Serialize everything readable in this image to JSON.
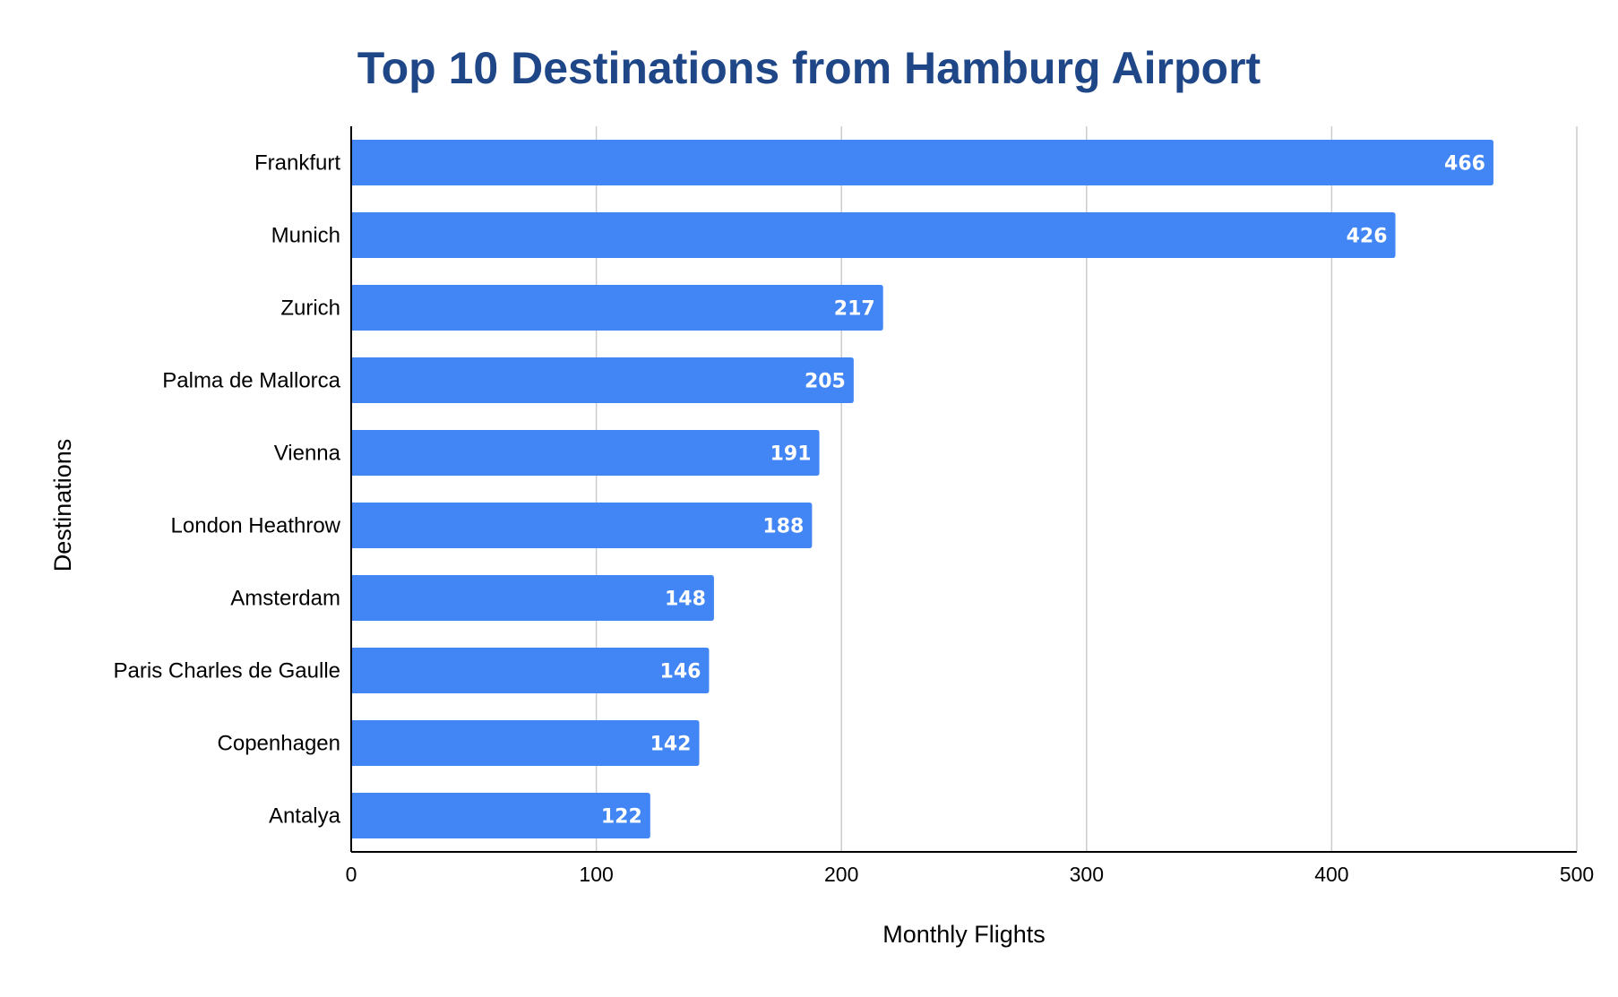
{
  "chart_data": {
    "type": "bar",
    "orientation": "horizontal",
    "title": "Top 10 Destinations from Hamburg Airport",
    "xlabel": "Monthly Flights",
    "ylabel": "Destinations",
    "categories": [
      "Frankfurt",
      "Munich",
      "Zurich",
      "Palma de Mallorca",
      "Vienna",
      "London Heathrow",
      "Amsterdam",
      "Paris Charles de Gaulle",
      "Copenhagen",
      "Antalya"
    ],
    "values": [
      466,
      426,
      217,
      205,
      191,
      188,
      148,
      146,
      142,
      122
    ],
    "xlim": [
      0,
      500
    ],
    "xticks": [
      0,
      100,
      200,
      300,
      400,
      500
    ],
    "grid": true,
    "legend": "none",
    "bar_color": "#4285f4",
    "title_color": "#1f4788",
    "gridline_color": "#cccccc"
  }
}
